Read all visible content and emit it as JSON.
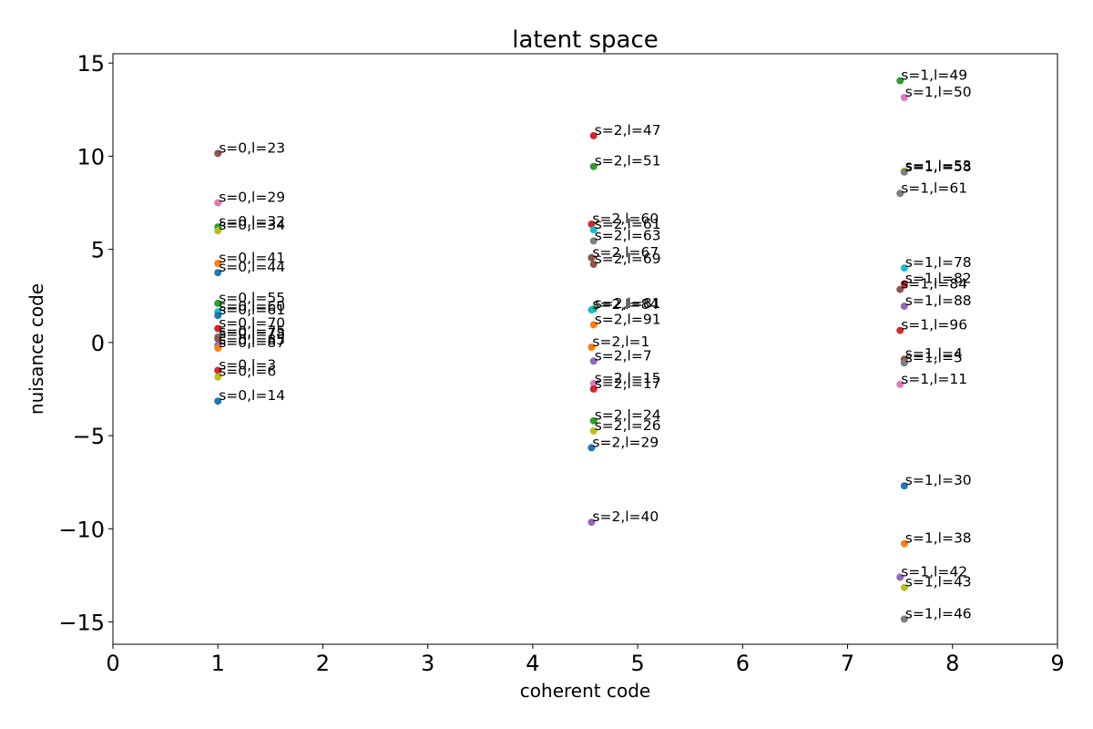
{
  "chart_data": {
    "type": "scatter",
    "title": "latent space",
    "xlabel": "coherent code",
    "ylabel": "nuisance code",
    "xlim": [
      0,
      9
    ],
    "ylim": [
      -16.2,
      15.5
    ],
    "xticks": [
      0,
      1,
      2,
      3,
      4,
      5,
      6,
      7,
      8,
      9
    ],
    "yticks": [
      15,
      10,
      5,
      0,
      -5,
      -10,
      -15
    ],
    "ytick_labels": [
      "15",
      "10",
      "5",
      "0",
      "−5",
      "−10",
      "−15"
    ],
    "grid": false,
    "colors": [
      "#1f77b4",
      "#ff7f0e",
      "#2ca02c",
      "#d62728",
      "#9467bd",
      "#8c564b",
      "#e377c2",
      "#7f7f7f",
      "#bcbd22",
      "#17becf"
    ],
    "points": [
      {
        "x": 1.0,
        "y": 10.15,
        "label": "s=0,l=23",
        "color": "#8c564b"
      },
      {
        "x": 1.0,
        "y": 7.5,
        "label": "s=0,l=29",
        "color": "#e377c2"
      },
      {
        "x": 1.0,
        "y": 6.2,
        "label": "s=0,l=32",
        "color": "#2ca02c"
      },
      {
        "x": 1.0,
        "y": 6.0,
        "label": "s=0,l=34",
        "color": "#bcbd22"
      },
      {
        "x": 1.0,
        "y": 4.25,
        "label": "s=0,l=41",
        "color": "#ff7f0e"
      },
      {
        "x": 1.0,
        "y": 3.75,
        "label": "s=0,l=44",
        "color": "#1f77b4"
      },
      {
        "x": 1.0,
        "y": 2.1,
        "label": "s=0,l=55",
        "color": "#2ca02c"
      },
      {
        "x": 1.0,
        "y": 1.65,
        "label": "s=0,l=60",
        "color": "#17becf"
      },
      {
        "x": 1.0,
        "y": 1.45,
        "label": "s=0,l=61",
        "color": "#1f77b4"
      },
      {
        "x": 1.0,
        "y": 0.75,
        "label": "s=0,l=70",
        "color": "#d62728"
      },
      {
        "x": 1.0,
        "y": 0.3,
        "label": "s=0,l=75",
        "color": "#7f7f7f"
      },
      {
        "x": 1.0,
        "y": 0.2,
        "label": "s=0,l=78",
        "color": "#8c564b"
      },
      {
        "x": 1.0,
        "y": -0.15,
        "label": "s=0,l=85",
        "color": "#9467bd"
      },
      {
        "x": 1.0,
        "y": -0.3,
        "label": "s=0,l=87",
        "color": "#ff7f0e"
      },
      {
        "x": 1.0,
        "y": -1.5,
        "label": "s=0,l=3",
        "color": "#d62728"
      },
      {
        "x": 1.0,
        "y": -1.85,
        "label": "s=0,l=6",
        "color": "#bcbd22"
      },
      {
        "x": 1.0,
        "y": -3.15,
        "label": "s=0,l=14",
        "color": "#1f77b4"
      },
      {
        "x": 4.58,
        "y": 11.1,
        "label": "s=2,l=47",
        "color": "#d62728"
      },
      {
        "x": 4.58,
        "y": 9.45,
        "label": "s=2,l=51",
        "color": "#2ca02c"
      },
      {
        "x": 4.56,
        "y": 6.35,
        "label": "s=2,l=60",
        "color": "#d62728"
      },
      {
        "x": 4.58,
        "y": 6.05,
        "label": "s=2,l=61",
        "color": "#17becf"
      },
      {
        "x": 4.58,
        "y": 5.45,
        "label": "s=2,l=63",
        "color": "#7f7f7f"
      },
      {
        "x": 4.56,
        "y": 4.55,
        "label": "s=2,l=67",
        "color": "#8c564b"
      },
      {
        "x": 4.58,
        "y": 4.2,
        "label": "s=2,l=69",
        "color": "#8c564b"
      },
      {
        "x": 4.58,
        "y": 1.8,
        "label": "s=2,l=81",
        "color": "#2ca02c"
      },
      {
        "x": 4.56,
        "y": 1.75,
        "label": "s=2,l=84",
        "color": "#17becf"
      },
      {
        "x": 4.58,
        "y": 0.95,
        "label": "s=2,l=91",
        "color": "#ff7f0e"
      },
      {
        "x": 4.56,
        "y": -0.25,
        "label": "s=2,l=1",
        "color": "#ff7f0e"
      },
      {
        "x": 4.58,
        "y": -1.0,
        "label": "s=2,l=7",
        "color": "#9467bd"
      },
      {
        "x": 4.58,
        "y": -2.2,
        "label": "s=2,l=15",
        "color": "#e377c2"
      },
      {
        "x": 4.58,
        "y": -2.5,
        "label": "s=2,l=17",
        "color": "#d62728"
      },
      {
        "x": 4.58,
        "y": -4.2,
        "label": "s=2,l=24",
        "color": "#2ca02c"
      },
      {
        "x": 4.58,
        "y": -4.75,
        "label": "s=2,l=26",
        "color": "#bcbd22"
      },
      {
        "x": 4.56,
        "y": -5.65,
        "label": "s=2,l=29",
        "color": "#1f77b4"
      },
      {
        "x": 4.56,
        "y": -9.65,
        "label": "s=2,l=40",
        "color": "#9467bd"
      },
      {
        "x": 7.5,
        "y": 14.05,
        "label": "s=1,l=49",
        "color": "#2ca02c"
      },
      {
        "x": 7.54,
        "y": 13.15,
        "label": "s=1,l=50",
        "color": "#e377c2"
      },
      {
        "x": 7.54,
        "y": 9.2,
        "label": "s=1,l=53",
        "color": "#bcbd22"
      },
      {
        "x": 7.54,
        "y": 9.15,
        "label": "s=1,l=58",
        "color": "#7f7f7f"
      },
      {
        "x": 7.5,
        "y": 8.0,
        "label": "s=1,l=61",
        "color": "#7f7f7f"
      },
      {
        "x": 7.54,
        "y": 4.0,
        "label": "s=1,l=78",
        "color": "#17becf"
      },
      {
        "x": 7.54,
        "y": 3.15,
        "label": "s=1,l=82",
        "color": "#d62728"
      },
      {
        "x": 7.5,
        "y": 2.85,
        "label": "s=1,l=84",
        "color": "#8c564b"
      },
      {
        "x": 7.54,
        "y": 1.95,
        "label": "s=1,l=88",
        "color": "#9467bd"
      },
      {
        "x": 7.5,
        "y": 0.65,
        "label": "s=1,l=96",
        "color": "#d62728"
      },
      {
        "x": 7.54,
        "y": -0.9,
        "label": "s=1,l=4",
        "color": "#8c564b"
      },
      {
        "x": 7.54,
        "y": -1.1,
        "label": "s=1,l=5",
        "color": "#7f7f7f"
      },
      {
        "x": 7.5,
        "y": -2.25,
        "label": "s=1,l=11",
        "color": "#e377c2"
      },
      {
        "x": 7.54,
        "y": -7.7,
        "label": "s=1,l=30",
        "color": "#1f77b4"
      },
      {
        "x": 7.54,
        "y": -10.8,
        "label": "s=1,l=38",
        "color": "#ff7f0e"
      },
      {
        "x": 7.5,
        "y": -12.6,
        "label": "s=1,l=42",
        "color": "#9467bd"
      },
      {
        "x": 7.54,
        "y": -13.15,
        "label": "s=1,l=43",
        "color": "#bcbd22"
      },
      {
        "x": 7.54,
        "y": -14.85,
        "label": "s=1,l=46",
        "color": "#7f7f7f"
      }
    ]
  }
}
